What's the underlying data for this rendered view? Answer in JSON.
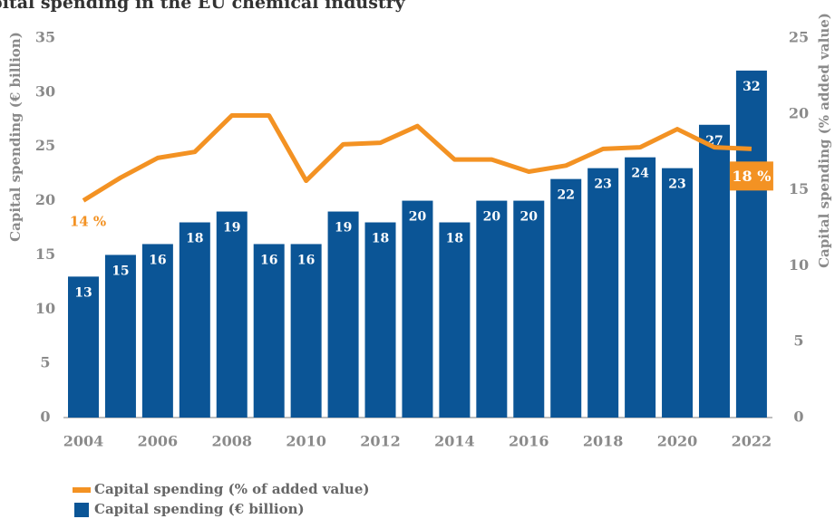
{
  "chart_data": {
    "type": "bar-line",
    "title": "Capital spending in the EU chemical industry",
    "y_label": "Capital spending (€ billion)",
    "y2_label": "Capital spending (% added value)",
    "categories": [
      "2004",
      null,
      "2006",
      null,
      "2008",
      null,
      "2010",
      null,
      "2012",
      null,
      "2014",
      null,
      "2016",
      null,
      "2018",
      null,
      "2020",
      null,
      "2022"
    ],
    "series": [
      {
        "name": "Capital spending (% of added value)",
        "type": "line",
        "axis": "y2",
        "color": "#f39223",
        "values": [
          14.3,
          15.8,
          17.1,
          17.5,
          19.9,
          19.9,
          15.6,
          18.0,
          18.1,
          19.2,
          17.0,
          17.0,
          16.2,
          16.6,
          17.7,
          17.8,
          19.0,
          17.8,
          17.7
        ],
        "value_labels": [
          "14 %",
          null,
          null,
          null,
          null,
          null,
          null,
          null,
          null,
          null,
          null,
          null,
          null,
          null,
          null,
          null,
          null,
          null,
          "18 %"
        ]
      },
      {
        "name": "Capital spending (€ billion)",
        "type": "bar",
        "color": "#0b5596",
        "values": [
          13,
          15,
          16,
          18,
          19,
          16,
          16,
          19,
          18,
          20,
          18,
          20,
          20,
          22,
          23,
          24,
          23,
          27,
          32
        ]
      }
    ],
    "ylim": [
      0,
      35
    ],
    "yticks": [
      0,
      5,
      10,
      15,
      20,
      25,
      30,
      35
    ],
    "y2lim": [
      0,
      25
    ],
    "y2ticks": [
      0,
      5,
      10,
      15,
      20,
      25
    ],
    "legend": "bottom-left"
  }
}
